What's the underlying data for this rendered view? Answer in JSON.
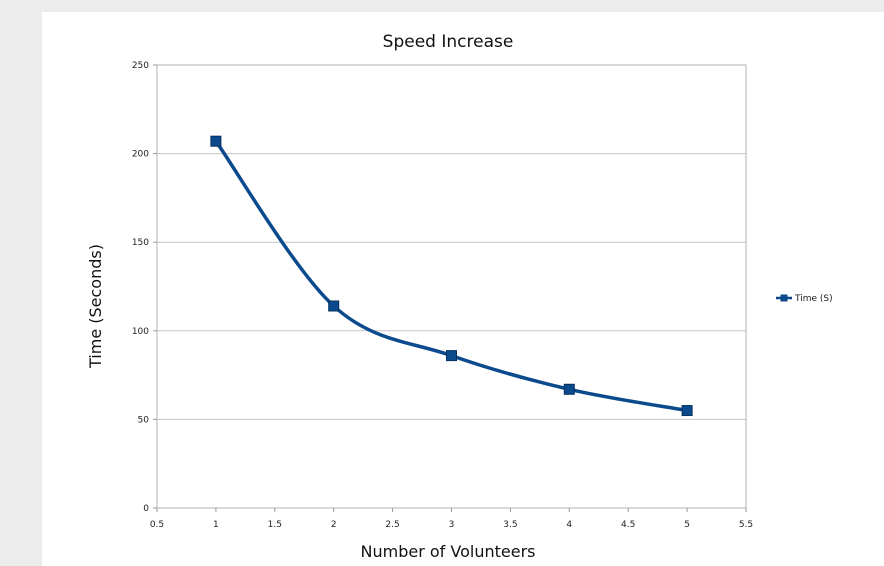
{
  "chart_data": {
    "type": "line",
    "title": "Speed Increase",
    "xlabel": "Number of Volunteers",
    "ylabel": "Time (Seconds)",
    "xlim": [
      0.5,
      5.5
    ],
    "ylim": [
      0,
      250
    ],
    "x_ticks": [
      "0.5",
      "1",
      "1.5",
      "2",
      "2.5",
      "3",
      "3.5",
      "4",
      "4.5",
      "5",
      "5.5"
    ],
    "y_ticks": [
      "0",
      "50",
      "100",
      "150",
      "200",
      "250"
    ],
    "grid": "horizontal",
    "legend_position": "right",
    "series": [
      {
        "name": "Time (S)",
        "color": "#0b4a8c",
        "marker": "square",
        "smooth": true,
        "x": [
          1,
          2,
          3,
          4,
          5
        ],
        "y": [
          207,
          114,
          86,
          67,
          55
        ]
      }
    ]
  }
}
